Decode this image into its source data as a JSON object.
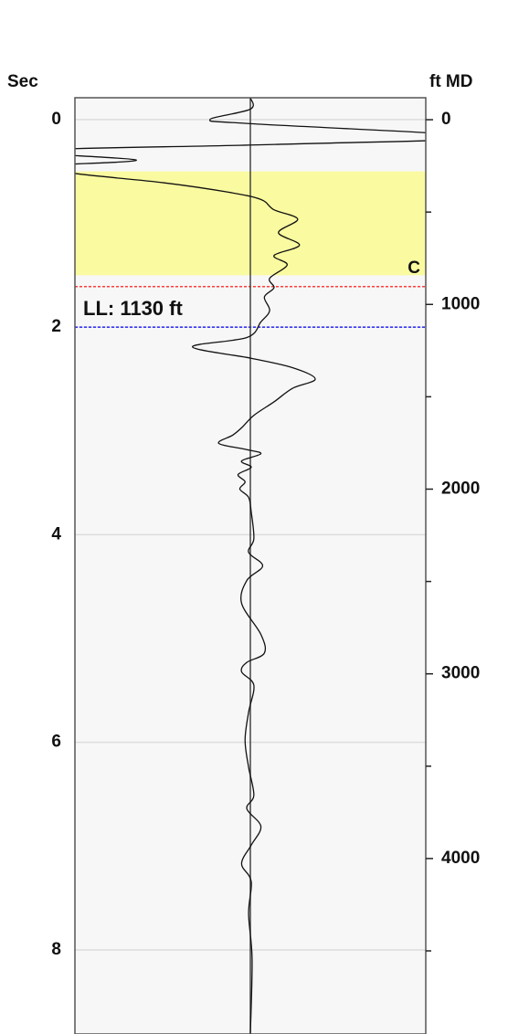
{
  "chart_data": {
    "type": "line",
    "ylabel": "Sec",
    "y2label": "ft MD",
    "ylim": [
      8.81,
      -0.21
    ],
    "yticks": [
      0,
      2,
      4,
      6,
      8
    ],
    "y2lim": [
      4950,
      -119
    ],
    "y2ticks": [
      0,
      1000,
      2000,
      3000,
      4000
    ],
    "y2minor_ticks": [
      500,
      1500,
      2500,
      3500,
      4500
    ],
    "xlim": [
      -1,
      1
    ],
    "grid": true,
    "color": "#111111",
    "series": [
      {
        "color": "#111111",
        "y": [
          -0.21,
          -0.1,
          0.0,
          0.04,
          0.17,
          0.24,
          0.3,
          0.39,
          0.45,
          0.52,
          0.61,
          0.7,
          0.77,
          0.87,
          0.96,
          1.09,
          1.21,
          1.31,
          1.4,
          1.53,
          1.62,
          1.71,
          1.84,
          1.95,
          2.1,
          2.19,
          2.3,
          2.39,
          2.5,
          2.59,
          2.72,
          2.85,
          2.97,
          3.04,
          3.12,
          3.18,
          3.22,
          3.29,
          3.35,
          3.42,
          3.49,
          3.56,
          3.64,
          3.78,
          4.04,
          4.17,
          4.3,
          4.44,
          4.66,
          4.96,
          5.14,
          5.23,
          5.32,
          5.45,
          5.71,
          5.98,
          6.24,
          6.51,
          6.64,
          6.81,
          6.99,
          7.17,
          7.34,
          7.65,
          8.09,
          8.81
        ],
        "x": [
          0,
          0,
          -0.23,
          0,
          1.3,
          0.14,
          -1.3,
          -0.65,
          -1.2,
          -1.0,
          -0.49,
          -0.125,
          0.06,
          0.135,
          0.27,
          0.16,
          0.28,
          0.135,
          0.21,
          0.11,
          0.135,
          0.08,
          0.11,
          0.06,
          -0.02,
          -0.33,
          0.005,
          0.24,
          0.37,
          0.24,
          0.135,
          0.02,
          -0.05,
          -0.1,
          -0.18,
          -0.02,
          0.06,
          -0.05,
          0.005,
          -0.07,
          -0.03,
          -0.06,
          -0.01,
          0.005,
          0.02,
          -0.01,
          0.07,
          -0.02,
          -0.05,
          0.06,
          0.08,
          -0.02,
          -0.05,
          0.02,
          -0.01,
          -0.03,
          -0.01,
          0.02,
          -0.02,
          0.06,
          0.005,
          -0.05,
          0.005,
          -0.01,
          0.01,
          0
        ]
      }
    ],
    "band": {
      "from": 0.5,
      "to": 1.5,
      "color": "#fafaa0"
    },
    "markers": [
      {
        "value": 1.61,
        "color": "#ff0000",
        "label": "C"
      },
      {
        "value": 2.0,
        "color": "#0000ff",
        "label": "LL: 1130 ft"
      }
    ]
  }
}
